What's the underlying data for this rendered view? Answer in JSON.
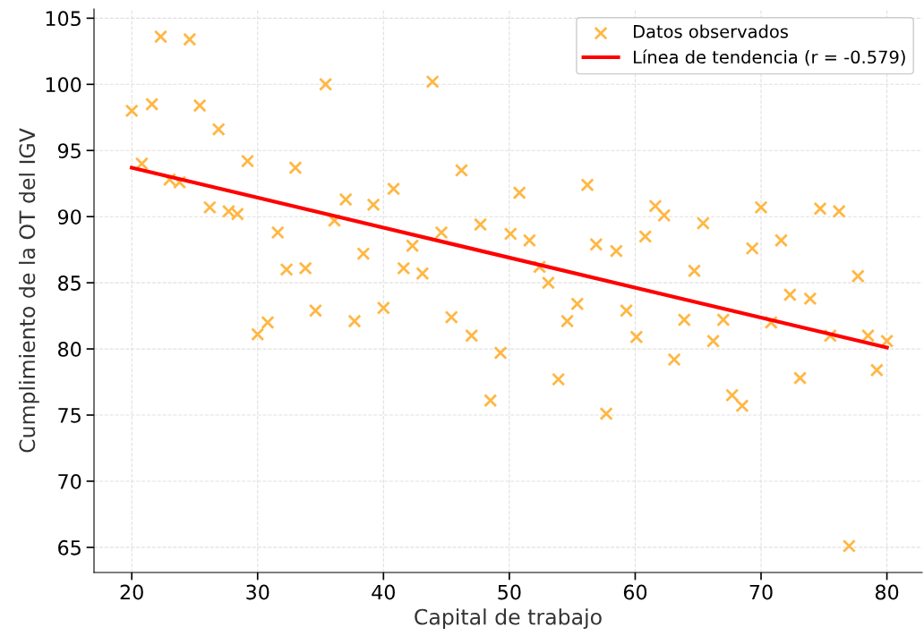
{
  "chart_data": {
    "type": "scatter",
    "xlabel": "Capital de trabajo",
    "ylabel": "Cumplimiento de la OT del IGV",
    "xlim": [
      17.0,
      82.8
    ],
    "ylim": [
      63.1,
      105.7
    ],
    "xticks": [
      20,
      30,
      40,
      50,
      60,
      70,
      80
    ],
    "yticks": [
      65,
      70,
      75,
      80,
      85,
      90,
      95,
      100,
      105
    ],
    "grid": true,
    "legend": "top right",
    "marker": "cross",
    "series": [
      {
        "name": "Datos observados",
        "color": "#ffb743",
        "x": [
          20.0,
          20.8,
          21.6,
          22.3,
          23.0,
          23.8,
          24.6,
          25.4,
          26.9,
          26.2,
          27.7,
          28.4,
          29.2,
          30.0,
          30.8,
          31.6,
          32.3,
          33.0,
          33.8,
          34.6,
          35.4,
          36.1,
          37.0,
          37.7,
          38.4,
          39.2,
          40.0,
          40.8,
          41.6,
          42.3,
          43.1,
          43.9,
          44.6,
          45.4,
          46.2,
          47.0,
          47.7,
          48.5,
          49.3,
          50.1,
          50.8,
          51.6,
          52.4,
          53.1,
          53.9,
          54.6,
          55.4,
          56.2,
          56.9,
          57.7,
          58.5,
          59.3,
          60.1,
          60.8,
          61.6,
          62.3,
          63.1,
          63.9,
          64.7,
          65.4,
          66.2,
          67.0,
          67.7,
          68.5,
          69.3,
          70.0,
          70.8,
          71.6,
          72.3,
          73.1,
          73.9,
          74.7,
          75.5,
          76.2,
          77.0,
          77.7,
          78.5,
          79.2,
          80.0
        ],
        "values": [
          98.0,
          94.0,
          98.5,
          103.6,
          92.8,
          92.6,
          103.4,
          98.4,
          96.6,
          90.7,
          90.4,
          90.2,
          94.2,
          81.1,
          82.0,
          88.8,
          86.0,
          93.7,
          86.1,
          82.9,
          100.0,
          89.7,
          91.3,
          82.1,
          87.2,
          90.9,
          83.1,
          92.1,
          86.1,
          87.8,
          85.7,
          100.2,
          88.8,
          82.4,
          93.5,
          81.0,
          89.4,
          76.1,
          79.7,
          88.7,
          91.8,
          88.2,
          86.2,
          85.0,
          77.7,
          82.1,
          83.4,
          92.4,
          87.9,
          75.1,
          87.4,
          82.9,
          80.9,
          88.5,
          90.8,
          90.1,
          79.2,
          82.2,
          85.9,
          89.5,
          80.6,
          82.2,
          76.5,
          75.7,
          87.6,
          90.7,
          82.0,
          88.2,
          84.1,
          77.8,
          83.8,
          90.6,
          81.0,
          90.4,
          65.1,
          85.5,
          81.0,
          78.4,
          80.6
        ]
      },
      {
        "name": "Línea de tendencia (r = -0.579)",
        "type": "line",
        "color": "#ff0000",
        "marker": "none",
        "line_style": "solid",
        "x": [
          20,
          80
        ],
        "values": [
          93.7,
          80.1
        ]
      }
    ]
  }
}
